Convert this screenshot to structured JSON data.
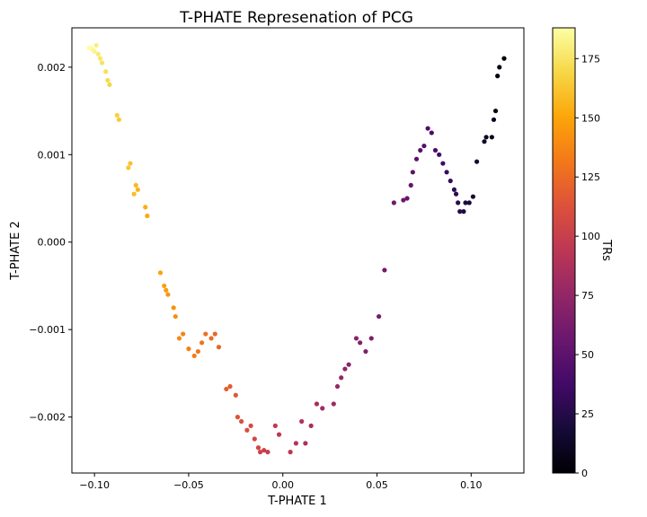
{
  "chart_data": {
    "type": "scatter",
    "title": "T-PHATE Represenation of PCG",
    "xlabel": "T-PHATE 1",
    "ylabel": "T-PHATE 2",
    "xlim": [
      -0.112,
      0.128
    ],
    "ylim": [
      -0.00264,
      0.00245
    ],
    "x_ticks": [
      -0.1,
      -0.05,
      0.0,
      0.05,
      0.1
    ],
    "x_tick_labels": [
      "−0.10",
      "−0.05",
      "0.00",
      "0.05",
      "0.10"
    ],
    "y_ticks": [
      -0.002,
      -0.001,
      0.0,
      0.001,
      0.002
    ],
    "y_tick_labels": [
      "−0.002",
      "−0.001",
      "0.000",
      "0.001",
      "0.002"
    ],
    "grid": false,
    "colormap": "inferno",
    "colorbar": {
      "label": "TRs",
      "range": [
        0,
        188
      ],
      "ticks": [
        0,
        25,
        50,
        75,
        100,
        125,
        150,
        175
      ],
      "tick_labels": [
        "0",
        "25",
        "50",
        "75",
        "100",
        "125",
        "150",
        "175"
      ]
    },
    "path": [
      [
        0.1175,
        0.0021
      ],
      [
        0.115,
        0.002
      ],
      [
        0.114,
        0.0019
      ],
      [
        0.113,
        0.0015
      ],
      [
        0.112,
        0.0014
      ],
      [
        0.111,
        0.0012
      ],
      [
        0.108,
        0.0012
      ],
      [
        0.107,
        0.00115
      ],
      [
        0.103,
        0.00092
      ],
      [
        0.101,
        0.00052
      ],
      [
        0.099,
        0.00045
      ],
      [
        0.097,
        0.00045
      ],
      [
        0.096,
        0.00035
      ],
      [
        0.094,
        0.00035
      ],
      [
        0.093,
        0.00045
      ],
      [
        0.092,
        0.00055
      ],
      [
        0.091,
        0.0006
      ],
      [
        0.089,
        0.0007
      ],
      [
        0.087,
        0.0008
      ],
      [
        0.085,
        0.0009
      ],
      [
        0.083,
        0.001
      ],
      [
        0.081,
        0.00105
      ],
      [
        0.079,
        0.00125
      ],
      [
        0.077,
        0.0013
      ],
      [
        0.075,
        0.0011
      ],
      [
        0.073,
        0.00105
      ],
      [
        0.071,
        0.00095
      ],
      [
        0.069,
        0.0008
      ],
      [
        0.068,
        0.00065
      ],
      [
        0.066,
        0.0005
      ],
      [
        0.064,
        0.00048
      ],
      [
        0.059,
        0.00045
      ],
      [
        0.054,
        -0.00032
      ],
      [
        0.051,
        -0.00085
      ],
      [
        0.047,
        -0.0011
      ],
      [
        0.044,
        -0.00125
      ],
      [
        0.041,
        -0.00115
      ],
      [
        0.039,
        -0.0011
      ],
      [
        0.035,
        -0.0014
      ],
      [
        0.033,
        -0.00145
      ],
      [
        0.031,
        -0.00155
      ],
      [
        0.029,
        -0.00165
      ],
      [
        0.027,
        -0.00185
      ],
      [
        0.021,
        -0.0019
      ],
      [
        0.018,
        -0.00185
      ],
      [
        0.015,
        -0.0021
      ],
      [
        0.012,
        -0.0023
      ],
      [
        0.01,
        -0.00205
      ],
      [
        0.007,
        -0.0023
      ],
      [
        0.004,
        -0.0024
      ],
      [
        -0.002,
        -0.0022
      ],
      [
        -0.004,
        -0.0021
      ],
      [
        -0.008,
        -0.0024
      ],
      [
        -0.01,
        -0.00238
      ],
      [
        -0.012,
        -0.0024
      ],
      [
        -0.013,
        -0.00235
      ],
      [
        -0.015,
        -0.00225
      ],
      [
        -0.017,
        -0.0021
      ],
      [
        -0.019,
        -0.00215
      ],
      [
        -0.022,
        -0.00205
      ],
      [
        -0.024,
        -0.002
      ],
      [
        -0.025,
        -0.00175
      ],
      [
        -0.028,
        -0.00165
      ],
      [
        -0.03,
        -0.00168
      ],
      [
        -0.034,
        -0.0012
      ],
      [
        -0.036,
        -0.00105
      ],
      [
        -0.038,
        -0.0011
      ],
      [
        -0.041,
        -0.00105
      ],
      [
        -0.043,
        -0.00115
      ],
      [
        -0.045,
        -0.00125
      ],
      [
        -0.047,
        -0.0013
      ],
      [
        -0.05,
        -0.00122
      ],
      [
        -0.053,
        -0.00105
      ],
      [
        -0.055,
        -0.0011
      ],
      [
        -0.057,
        -0.00085
      ],
      [
        -0.058,
        -0.00075
      ],
      [
        -0.061,
        -0.0006
      ],
      [
        -0.062,
        -0.00055
      ],
      [
        -0.063,
        -0.0005
      ],
      [
        -0.065,
        -0.00035
      ],
      [
        -0.072,
        0.0003
      ],
      [
        -0.073,
        0.0004
      ],
      [
        -0.077,
        0.0006
      ],
      [
        -0.078,
        0.00065
      ],
      [
        -0.079,
        0.00055
      ],
      [
        -0.081,
        0.0009
      ],
      [
        -0.082,
        0.00085
      ],
      [
        -0.087,
        0.0014
      ],
      [
        -0.088,
        0.00145
      ],
      [
        -0.092,
        0.0018
      ],
      [
        -0.093,
        0.00185
      ],
      [
        -0.094,
        0.00195
      ],
      [
        -0.096,
        0.00205
      ],
      [
        -0.097,
        0.0021
      ],
      [
        -0.098,
        0.00215
      ],
      [
        -0.099,
        0.00225
      ],
      [
        -0.1,
        0.00218
      ],
      [
        -0.101,
        0.0022
      ],
      [
        -0.102,
        0.00222
      ],
      [
        -0.103,
        0.00222
      ]
    ]
  }
}
